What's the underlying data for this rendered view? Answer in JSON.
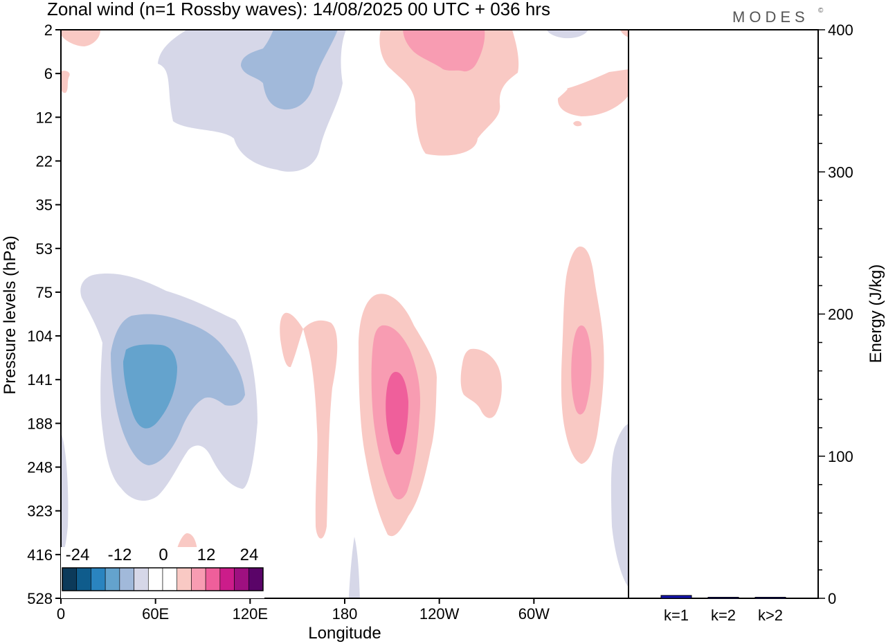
{
  "title": "Zonal wind (n=1 Rossby waves):  14/08/2025  00 UTC  + 036 hrs",
  "logo": "MODES",
  "logo_mark": "©",
  "colorbar": {
    "labels": [
      "-24",
      "-12",
      "0",
      "12",
      "24"
    ],
    "colors": [
      "#0c3a5a",
      "#0f5c8c",
      "#2a84bf",
      "#64a3cd",
      "#a1b9da",
      "#d6d7e8",
      "#ffffff",
      "#ffffff",
      "#f9c9c4",
      "#f89cb2",
      "#ef5f9b",
      "#cc1c8a",
      "#9e1080",
      "#5a0468"
    ]
  },
  "chart_data": [
    {
      "type": "contour",
      "title": "Zonal wind (n=1 Rossby waves):  14/08/2025  00 UTC  + 036 hrs",
      "xlabel": "Longitude",
      "ylabel": "Pressure levels (hPa)",
      "x_ticks": [
        "0",
        "60E",
        "120E",
        "180",
        "120W",
        "60W"
      ],
      "y_ticks": [
        "2",
        "6",
        "12",
        "22",
        "35",
        "53",
        "75",
        "104",
        "141",
        "188",
        "248",
        "323",
        "416",
        "528"
      ],
      "contour_levels": [
        -24,
        -12,
        0,
        12,
        24
      ],
      "features": [
        {
          "sign": "negative",
          "peak": -12,
          "longitude": "50E",
          "level_hPa": 141
        },
        {
          "sign": "positive",
          "peak": 12,
          "longitude": "160W",
          "level_hPa": 141
        },
        {
          "sign": "positive",
          "peak": 9,
          "longitude": "40W",
          "level_hPa": 141
        },
        {
          "sign": "positive",
          "peak": 6,
          "longitude": "140W",
          "level_hPa": 6
        },
        {
          "sign": "negative",
          "peak": -6,
          "longitude": "150E",
          "level_hPa": 6
        }
      ]
    },
    {
      "type": "bar",
      "ylabel": "Energy (J/kg)",
      "categories": [
        "k=1",
        "k=2",
        "k>2"
      ],
      "values": [
        2,
        0.5,
        0.5
      ],
      "ylim": [
        0,
        400
      ],
      "y_ticks": [
        "0",
        "100",
        "200",
        "300",
        "400"
      ],
      "bar_color": "#1515b0"
    }
  ]
}
